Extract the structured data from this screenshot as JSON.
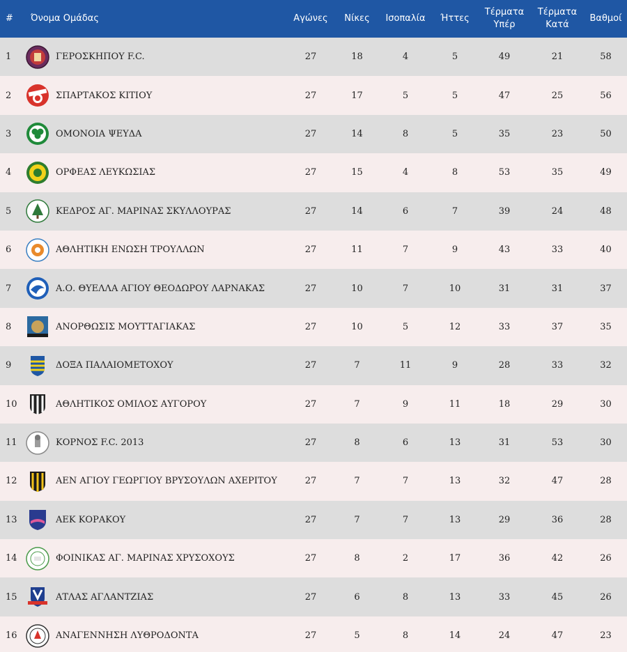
{
  "headers": {
    "rank": "#",
    "team": "Όνομα Ομάδας",
    "played": "Αγώνες",
    "wins": "Νίκες",
    "draws": "Ισοπαλία",
    "losses": "Ήττες",
    "goals_for": "Τέρματα Υπέρ",
    "goals_against": "Τέρματα Κατά",
    "points": "Βαθμοί"
  },
  "rows": [
    {
      "rank": "1",
      "team": "ΓΕΡΟΣΚΗΠΟΥ F.C.",
      "logo": "geroskipou-crest",
      "played": "27",
      "wins": "18",
      "draws": "4",
      "losses": "5",
      "gf": "49",
      "ga": "21",
      "pts": "58"
    },
    {
      "rank": "2",
      "team": "ΣΠΑΡΤΑΚΟΣ ΚΙΤΙΟΥ",
      "logo": "spartakos-crest",
      "played": "27",
      "wins": "17",
      "draws": "5",
      "losses": "5",
      "gf": "47",
      "ga": "25",
      "pts": "56"
    },
    {
      "rank": "3",
      "team": "ΟΜΟΝΟΙΑ ΨΕΥΔΑ",
      "logo": "omonoia-crest",
      "played": "27",
      "wins": "14",
      "draws": "8",
      "losses": "5",
      "gf": "35",
      "ga": "23",
      "pts": "50"
    },
    {
      "rank": "4",
      "team": "ΟΡΦΕΑΣ ΛΕΥΚΩΣΙΑΣ",
      "logo": "orfeas-crest",
      "played": "27",
      "wins": "15",
      "draws": "4",
      "losses": "8",
      "gf": "53",
      "ga": "35",
      "pts": "49"
    },
    {
      "rank": "5",
      "team": "ΚΕΔΡΟΣ ΑΓ. ΜΑΡΙΝΑΣ ΣΚΥΛΛΟΥΡΑΣ",
      "logo": "kedros-crest",
      "played": "27",
      "wins": "14",
      "draws": "6",
      "losses": "7",
      "gf": "39",
      "ga": "24",
      "pts": "48"
    },
    {
      "rank": "6",
      "team": "ΑΘΛΗΤΙΚΗ ΕΝΩΣΗ ΤΡΟΥΛΛΩΝ",
      "logo": "troullon-crest",
      "played": "27",
      "wins": "11",
      "draws": "7",
      "losses": "9",
      "gf": "43",
      "ga": "33",
      "pts": "40"
    },
    {
      "rank": "7",
      "team": "Α.Ο. ΘΥΕΛΛΑ ΑΓΙΟΥ ΘΕΟΔΩΡΟΥ ΛΑΡΝΑΚΑΣ",
      "logo": "thyella-crest",
      "played": "27",
      "wins": "10",
      "draws": "7",
      "losses": "10",
      "gf": "31",
      "ga": "31",
      "pts": "37"
    },
    {
      "rank": "8",
      "team": "ΑΝΟΡΘΩΣΙΣ ΜΟΥΤΤΑΓΙΑΚΑΣ",
      "logo": "anorthosis-crest",
      "played": "27",
      "wins": "10",
      "draws": "5",
      "losses": "12",
      "gf": "33",
      "ga": "37",
      "pts": "35"
    },
    {
      "rank": "9",
      "team": "ΔΟΞΑ ΠΑΛΑΙΟΜΕΤΟΧΟΥ",
      "logo": "doxa-crest",
      "played": "27",
      "wins": "7",
      "draws": "11",
      "losses": "9",
      "gf": "28",
      "ga": "33",
      "pts": "32"
    },
    {
      "rank": "10",
      "team": "ΑΘΛΗΤΙΚΟΣ ΟΜΙΛΟΣ ΑΥΓΟΡΟΥ",
      "logo": "avgorou-crest",
      "played": "27",
      "wins": "7",
      "draws": "9",
      "losses": "11",
      "gf": "18",
      "ga": "29",
      "pts": "30"
    },
    {
      "rank": "11",
      "team": "ΚΟΡΝΟΣ F.C. 2013",
      "logo": "kornos-crest",
      "played": "27",
      "wins": "8",
      "draws": "6",
      "losses": "13",
      "gf": "31",
      "ga": "53",
      "pts": "30"
    },
    {
      "rank": "12",
      "team": "ΑΕΝ ΑΓΙΟΥ ΓΕΩΡΓΙΟΥ ΒΡΥΣΟΥΛΩΝ ΑΧΕΡΙΤΟΥ",
      "logo": "aen-crest",
      "played": "27",
      "wins": "7",
      "draws": "7",
      "losses": "13",
      "gf": "32",
      "ga": "47",
      "pts": "28"
    },
    {
      "rank": "13",
      "team": "ΑΕΚ ΚΟΡΑΚΟΥ",
      "logo": "aek-korakou-crest",
      "played": "27",
      "wins": "7",
      "draws": "7",
      "losses": "13",
      "gf": "29",
      "ga": "36",
      "pts": "28"
    },
    {
      "rank": "14",
      "team": "ΦΟΙΝΙΚΑΣ ΑΓ. ΜΑΡΙΝΑΣ ΧΡΥΣΟΧΟΥΣ",
      "logo": "foinikas-crest",
      "played": "27",
      "wins": "8",
      "draws": "2",
      "losses": "17",
      "gf": "36",
      "ga": "42",
      "pts": "26"
    },
    {
      "rank": "15",
      "team": "ΑΤΛΑΣ ΑΓΛΑΝΤΖΙΑΣ",
      "logo": "atlas-crest",
      "played": "27",
      "wins": "6",
      "draws": "8",
      "losses": "13",
      "gf": "33",
      "ga": "45",
      "pts": "26"
    },
    {
      "rank": "16",
      "team": "ΑΝΑΓΕΝΝΗΣΗ ΛΥΘΡΟΔΟΝΤΑ",
      "logo": "anagennisi-crest",
      "played": "27",
      "wins": "5",
      "draws": "8",
      "losses": "14",
      "gf": "24",
      "ga": "47",
      "pts": "23"
    }
  ]
}
